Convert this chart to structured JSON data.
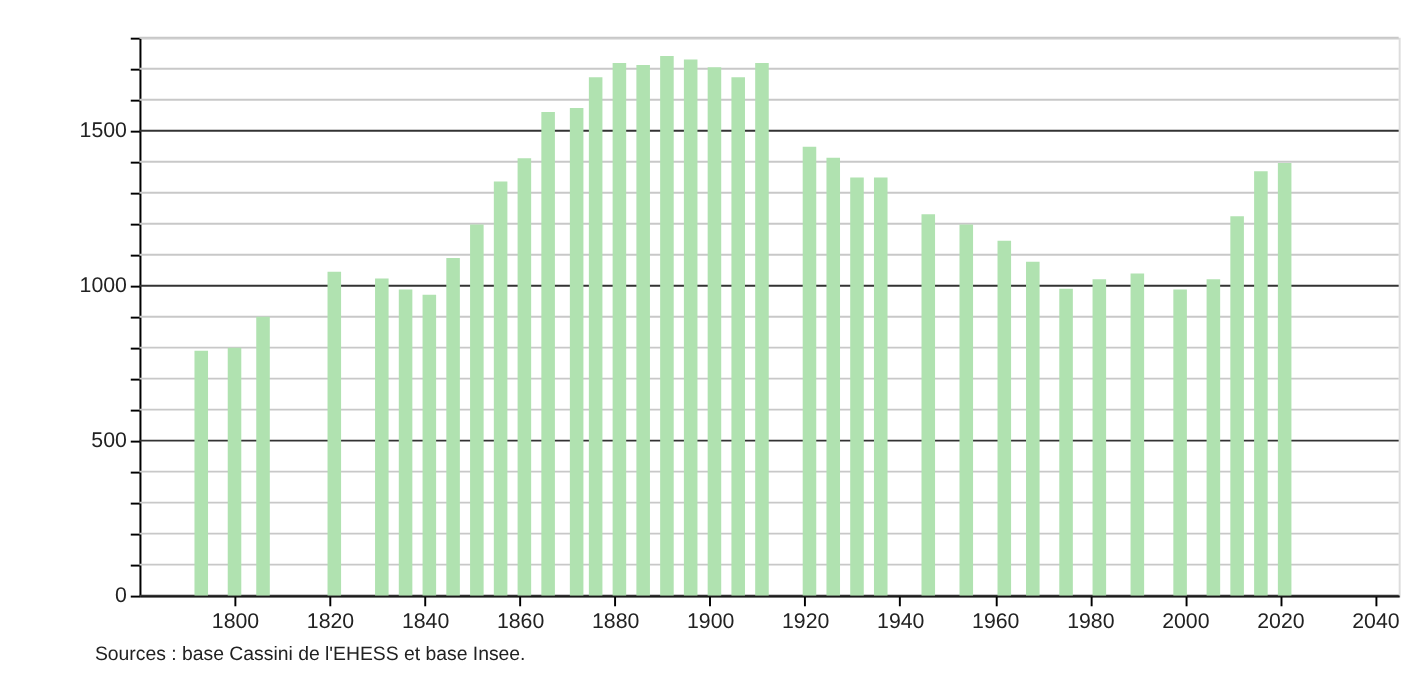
{
  "chart_data": {
    "type": "bar",
    "color": "#b0e2b0",
    "x": [
      1793,
      1800,
      1806,
      1821,
      1831,
      1836,
      1841,
      1846,
      1851,
      1856,
      1861,
      1866,
      1872,
      1876,
      1881,
      1886,
      1891,
      1896,
      1901,
      1906,
      1911,
      1921,
      1926,
      1931,
      1936,
      1946,
      1954,
      1962,
      1968,
      1975,
      1982,
      1990,
      1999,
      2006,
      2011,
      2016,
      2021
    ],
    "values": [
      790,
      800,
      900,
      1045,
      1023,
      988,
      971,
      1089,
      1197,
      1336,
      1411,
      1560,
      1573,
      1672,
      1718,
      1712,
      1741,
      1730,
      1705,
      1672,
      1718,
      1448,
      1413,
      1349,
      1349,
      1230,
      1197,
      1145,
      1077,
      990,
      1021,
      1039,
      988,
      1021,
      1224,
      1369,
      1396
    ],
    "xlim": [
      1780,
      2045
    ],
    "xticks": [
      1800,
      1820,
      1840,
      1860,
      1880,
      1900,
      1920,
      1940,
      1960,
      1980,
      2000,
      2020,
      2040
    ],
    "ylim": [
      0,
      1800
    ],
    "yticks": [
      0,
      {
        "value": 100,
        "label": null
      },
      {
        "value": 200,
        "label": null
      },
      {
        "value": 300,
        "label": null
      },
      {
        "value": 400,
        "label": null
      },
      500,
      {
        "value": 600,
        "label": null
      },
      {
        "value": 700,
        "label": null
      },
      {
        "value": 800,
        "label": null
      },
      {
        "value": 900,
        "label": null
      },
      1000,
      {
        "value": 1100,
        "label": null
      },
      {
        "value": 1200,
        "label": null
      },
      {
        "value": 1300,
        "label": null
      },
      {
        "value": 1400,
        "label": null
      },
      1500,
      {
        "value": 1600,
        "label": null
      },
      {
        "value": 1700,
        "label": null
      },
      {
        "value": 1800,
        "label": null
      }
    ],
    "grid": true,
    "annotations": [
      "Sources : base Cassini de l'EHESS et base Insee."
    ]
  }
}
